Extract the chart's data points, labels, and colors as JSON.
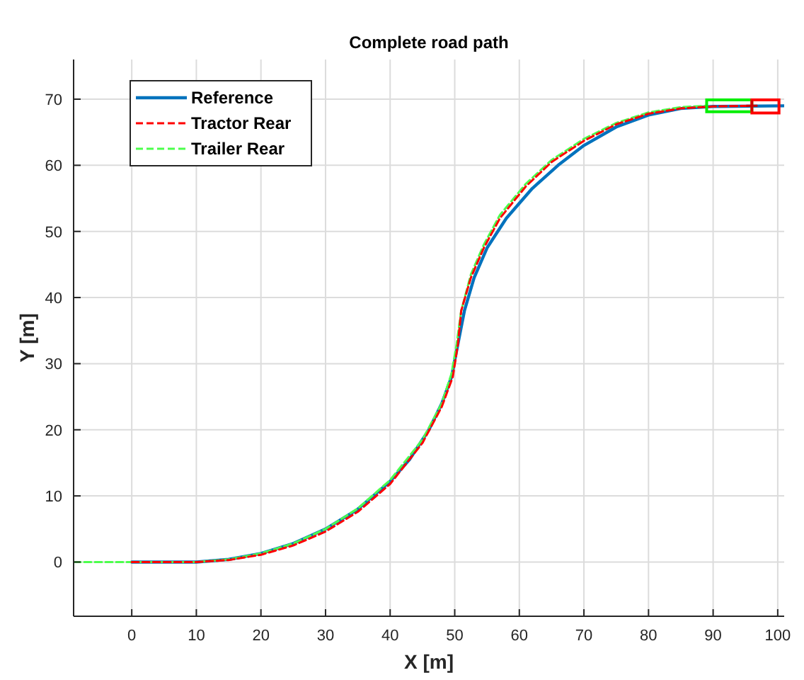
{
  "chart_data": {
    "type": "line",
    "title": "Complete road path",
    "xlabel": "X [m]",
    "ylabel": "Y [m]",
    "xlim": [
      -9,
      101
    ],
    "ylim": [
      -8.2,
      76
    ],
    "xticks": [
      0,
      10,
      20,
      30,
      40,
      50,
      60,
      70,
      80,
      90,
      100
    ],
    "yticks": [
      0,
      10,
      20,
      30,
      40,
      50,
      60,
      70
    ],
    "grid": true,
    "legend": "top left",
    "marker": "none",
    "series": [
      {
        "name": "Reference",
        "color": "#0072bd",
        "line_style": "solid",
        "x": [
          0,
          10,
          15,
          20,
          25,
          30,
          35,
          40,
          43,
          46,
          48,
          49.5,
          50.5,
          51.5,
          53,
          55,
          58,
          62,
          66,
          70,
          75,
          80,
          85,
          90,
          101
        ],
        "values": [
          0,
          0,
          0.4,
          1.3,
          2.8,
          5,
          8,
          12.2,
          15.5,
          20,
          24,
          28,
          33,
          38,
          43,
          47.5,
          52,
          56.5,
          60,
          63,
          65.8,
          67.6,
          68.6,
          68.9,
          69
        ]
      },
      {
        "name": "Tractor Rear",
        "color": "#ff0000",
        "line_style": "dashed",
        "x": [
          0,
          10,
          15,
          20,
          25,
          30,
          35,
          40,
          45,
          48,
          49.7,
          50.5,
          51,
          52.5,
          54.5,
          57,
          61,
          65,
          70,
          75,
          80,
          85,
          90,
          96
        ],
        "values": [
          0,
          0,
          0.3,
          1.1,
          2.5,
          4.6,
          7.6,
          11.8,
          18,
          23.5,
          28,
          33,
          38,
          43,
          47.5,
          52,
          56.8,
          60.5,
          63.7,
          66.2,
          67.8,
          68.6,
          68.9,
          69
        ]
      },
      {
        "name": "Trailer Rear",
        "color": "#4dff4d",
        "line_style": "dashed",
        "x": [
          -9,
          0,
          10,
          15,
          20,
          25,
          30,
          35,
          40,
          45,
          48,
          49.5,
          50.3,
          51,
          52.5,
          54.5,
          57,
          61,
          65,
          70,
          75,
          80,
          85,
          89
        ],
        "values": [
          0,
          0,
          0,
          0.4,
          1.3,
          2.8,
          5,
          8.1,
          12.4,
          18.5,
          24,
          28.5,
          33,
          38,
          43.5,
          48,
          52.5,
          57.2,
          60.8,
          64,
          66.4,
          68,
          68.8,
          69
        ]
      }
    ]
  }
}
